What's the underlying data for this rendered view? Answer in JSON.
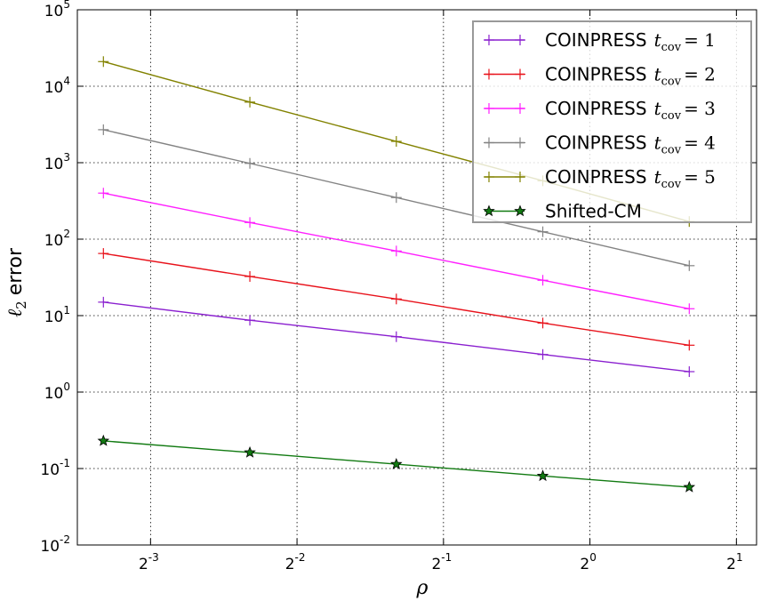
{
  "chart_data": {
    "type": "line",
    "xscale": "log2",
    "yscale": "log10",
    "xlabel": "ρ",
    "ylabel": "error",
    "ylabel_symbol": "ℓ",
    "ylabel_subscript": "2",
    "xlim": [
      0.0884,
      2.2
    ],
    "ylim": [
      0.01,
      100000
    ],
    "x_ticks": [
      {
        "base": "2",
        "exp": "-3",
        "value": 0.125
      },
      {
        "base": "2",
        "exp": "-2",
        "value": 0.25
      },
      {
        "base": "2",
        "exp": "-1",
        "value": 0.5
      },
      {
        "base": "2",
        "exp": "0",
        "value": 1
      },
      {
        "base": "2",
        "exp": "1",
        "value": 2
      }
    ],
    "y_ticks": [
      {
        "base": "10",
        "exp": "-2",
        "value": 0.01
      },
      {
        "base": "10",
        "exp": "-1",
        "value": 0.1
      },
      {
        "base": "10",
        "exp": "0",
        "value": 1
      },
      {
        "base": "10",
        "exp": "1",
        "value": 10
      },
      {
        "base": "10",
        "exp": "2",
        "value": 100
      },
      {
        "base": "10",
        "exp": "3",
        "value": 1000
      },
      {
        "base": "10",
        "exp": "4",
        "value": 10000
      },
      {
        "base": "10",
        "exp": "5",
        "value": 100000
      }
    ],
    "grid": true,
    "legend_position": "top-right",
    "x": [
      0.1,
      0.2,
      0.4,
      0.8,
      1.6
    ],
    "series": [
      {
        "name": "COINPRESS",
        "math_var": "t",
        "math_sub": "cov",
        "math_eq": "= 1",
        "color": "#8a1fcf",
        "marker": "plus",
        "values": [
          15,
          8.7,
          5.3,
          3.1,
          1.85
        ]
      },
      {
        "name": "COINPRESS",
        "math_var": "t",
        "math_sub": "cov",
        "math_eq": "= 2",
        "color": "#e8121b",
        "marker": "plus",
        "values": [
          65,
          32.5,
          16.5,
          8.0,
          4.1
        ]
      },
      {
        "name": "COINPRESS",
        "math_var": "t",
        "math_sub": "cov",
        "math_eq": "= 3",
        "color": "#ff1fff",
        "marker": "plus",
        "values": [
          400,
          165,
          70,
          29,
          12.3
        ]
      },
      {
        "name": "COINPRESS",
        "math_var": "t",
        "math_sub": "cov",
        "math_eq": "= 4",
        "color": "#838383",
        "marker": "plus",
        "values": [
          2700,
          980,
          350,
          125,
          45
        ]
      },
      {
        "name": "COINPRESS",
        "math_var": "t",
        "math_sub": "cov",
        "math_eq": "= 5",
        "color": "#828200",
        "marker": "plus",
        "values": [
          21000,
          6200,
          1900,
          580,
          170
        ]
      },
      {
        "name": "Shifted-CM",
        "math_var": "",
        "math_sub": "",
        "math_eq": "",
        "color": "#117a11",
        "marker": "star",
        "values": [
          0.23,
          0.162,
          0.114,
          0.08,
          0.057
        ]
      }
    ]
  }
}
